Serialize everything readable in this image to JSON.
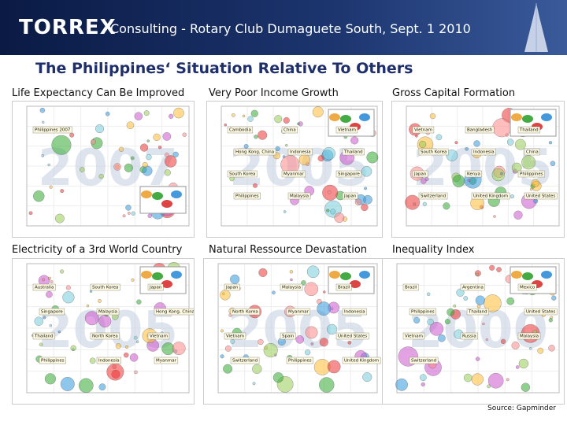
{
  "header": {
    "brand": "TORREX",
    "subtitle": "Consulting - Rotary Club Dumaguete South, Sept. 1 2010"
  },
  "title": "The Philippines‘ Situation Relative To Others",
  "panels": [
    {
      "caption": "Life Expectancy Can Be Improved",
      "year": "2007",
      "labels": [
        "Philippines 2007"
      ]
    },
    {
      "caption": "Very Poor Income Growth",
      "year": "2005",
      "labels": [
        "Cambodia",
        "China",
        "Vietnam",
        "Hong Kong, China",
        "Indonesia",
        "Thailand",
        "South Korea",
        "Myanmar",
        "Singapore",
        "Philippines",
        "Malaysia",
        "Japan"
      ]
    },
    {
      "caption": "Gross Capital Formation",
      "year": "2005",
      "labels": [
        "Vietnam",
        "Bangladesh",
        "Thailand",
        "South Korea",
        "Indonesia",
        "China",
        "Japan",
        "Kenya",
        "Philippines",
        "Switzerland",
        "United Kingdom",
        "United States"
      ]
    },
    {
      "caption": "Electricity of a 3rd World Country",
      "year": "2005",
      "labels": [
        "Australia",
        "South Korea",
        "Japan",
        "Singapore",
        "Malaysia",
        "Hong Kong, China",
        "Thailand",
        "North Korea",
        "Vietnam",
        "Philippines",
        "Indonesia",
        "Myanmar"
      ]
    },
    {
      "caption": "Natural Ressource Devastation",
      "year": "2005",
      "labels": [
        "Japan",
        "Malaysia",
        "Brazil",
        "North Korea",
        "Myanmar",
        "Indonesia",
        "Vietnam",
        "Spain",
        "United States",
        "Switzerland",
        "Philippines",
        "United Kingdom"
      ]
    },
    {
      "caption": "Inequality Index",
      "year": "2000",
      "labels": [
        "Brazil",
        "Argentina",
        "Mexico",
        "Philippines",
        "Thailand",
        "United States",
        "Vietnam",
        "Russia",
        "Malaysia",
        "Switzerland"
      ]
    }
  ],
  "source": "Source: Gapminder"
}
